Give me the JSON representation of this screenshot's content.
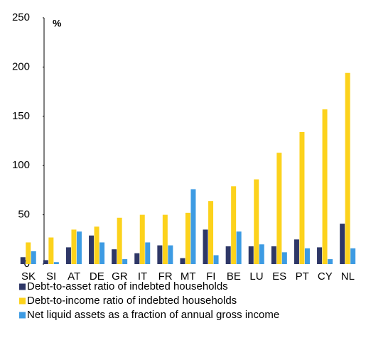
{
  "chart_data": {
    "type": "bar",
    "y_unit_label": "%",
    "categories": [
      "SK",
      "SI",
      "AT",
      "DE",
      "GR",
      "IT",
      "FR",
      "MT",
      "FI",
      "BE",
      "LU",
      "ES",
      "PT",
      "CY",
      "NL"
    ],
    "series": [
      {
        "name": "Debt-to-asset ratio of indebted households",
        "color": "#2e3767",
        "values": [
          7,
          4,
          17,
          29,
          15,
          11,
          19,
          6,
          35,
          18,
          18,
          18,
          25,
          17,
          41
        ]
      },
      {
        "name": "Debt-to-income ratio of indebted households",
        "color": "#fcd21c",
        "values": [
          22,
          27,
          35,
          38,
          47,
          50,
          50,
          52,
          64,
          79,
          86,
          113,
          134,
          157,
          194
        ]
      },
      {
        "name": "Net liquid assets as a fraction of annual gross income",
        "color": "#3d9be3",
        "values": [
          13,
          2,
          33,
          22,
          5,
          22,
          19,
          76,
          9,
          33,
          20,
          12,
          16,
          5,
          16
        ]
      }
    ],
    "ylim": [
      0,
      250
    ],
    "yticks": [
      0,
      50,
      100,
      150,
      200,
      250
    ]
  }
}
